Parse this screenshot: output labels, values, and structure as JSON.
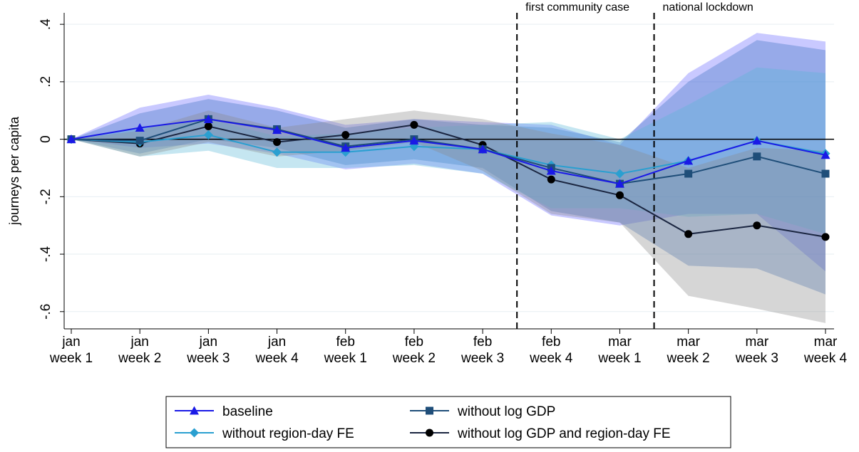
{
  "chart_data": {
    "type": "line",
    "ylabel": "journeys per capita",
    "categories": [
      [
        "jan",
        "week 1"
      ],
      [
        "jan",
        "week 2"
      ],
      [
        "jan",
        "week 3"
      ],
      [
        "jan",
        "week 4"
      ],
      [
        "feb",
        "week 1"
      ],
      [
        "feb",
        "week 2"
      ],
      [
        "feb",
        "week 3"
      ],
      [
        "feb",
        "week 4"
      ],
      [
        "mar",
        "week 1"
      ],
      [
        "mar",
        "week 2"
      ],
      [
        "mar",
        "week 3"
      ],
      [
        "mar",
        "week 4"
      ]
    ],
    "ylim": [
      -0.66,
      0.44
    ],
    "yticks": [
      {
        "value": 0.4,
        "label": ".4"
      },
      {
        "value": 0.2,
        "label": ".2"
      },
      0,
      {
        "value": -0.2,
        "label": "-.2"
      },
      {
        "value": -0.4,
        "label": "-.4"
      },
      {
        "value": -0.6,
        "label": "-.6"
      }
    ],
    "grid": true,
    "annotations": [
      {
        "text": "first community case",
        "x": 6.5
      },
      {
        "text": "national lockdown",
        "x": 8.5
      }
    ],
    "series": [
      {
        "name": "baseline",
        "color": "#1a1ae6",
        "band_color": "#6464ff",
        "marker": "triangle",
        "values": [
          0,
          0.04,
          0.07,
          0.032,
          -0.03,
          -0.005,
          -0.035,
          -0.11,
          -0.155,
          -0.075,
          -0.005,
          -0.055
        ],
        "upper": [
          0,
          0.11,
          0.155,
          0.11,
          0.05,
          0.07,
          0.06,
          0.05,
          -0.02,
          0.23,
          0.37,
          0.34
        ],
        "lower": [
          0,
          -0.03,
          -0.015,
          -0.05,
          -0.105,
          -0.085,
          -0.12,
          -0.265,
          -0.3,
          -0.26,
          -0.26,
          -0.46
        ]
      },
      {
        "name": "without log GDP",
        "color": "#1f4e79",
        "band_color": "#3a6fbf",
        "marker": "square",
        "values": [
          0,
          -0.005,
          0.07,
          0.035,
          -0.025,
          0,
          -0.035,
          -0.1,
          -0.155,
          -0.12,
          -0.06,
          -0.12
        ],
        "upper": [
          0,
          0.09,
          0.14,
          0.1,
          0.04,
          0.07,
          0.05,
          0.04,
          -0.01,
          0.2,
          0.345,
          0.31
        ],
        "lower": [
          0,
          -0.05,
          0,
          -0.03,
          -0.09,
          -0.07,
          -0.1,
          -0.25,
          -0.29,
          -0.44,
          -0.45,
          -0.54
        ]
      },
      {
        "name": "without region-day FE",
        "color": "#2a9fd0",
        "band_color": "#5ab8d8",
        "marker": "diamond",
        "values": [
          0,
          -0.01,
          0.015,
          -0.045,
          -0.045,
          -0.025,
          -0.035,
          -0.09,
          -0.12,
          -0.075,
          -0.005,
          -0.05
        ],
        "upper": [
          0,
          0.04,
          0.07,
          0.01,
          0.02,
          0.04,
          0.05,
          0.06,
          0,
          0.12,
          0.25,
          0.23
        ],
        "lower": [
          0,
          -0.06,
          -0.04,
          -0.1,
          -0.1,
          -0.09,
          -0.12,
          -0.24,
          -0.24,
          -0.27,
          -0.26,
          -0.33
        ]
      },
      {
        "name": "without log GDP and region-day FE",
        "color": "#1a2540",
        "band_color": "#8a8a8a",
        "marker": "circle",
        "values": [
          0,
          -0.015,
          0.045,
          -0.01,
          0.015,
          0.05,
          -0.02,
          -0.14,
          -0.195,
          -0.33,
          -0.3,
          -0.34
        ],
        "upper": [
          0,
          0.03,
          0.1,
          0.04,
          0.07,
          0.1,
          0.07,
          0.02,
          -0.02,
          -0.1,
          -0.03,
          -0.04
        ],
        "lower": [
          0,
          -0.06,
          -0.01,
          -0.06,
          -0.04,
          -0.01,
          -0.11,
          -0.26,
          -0.29,
          -0.545,
          -0.59,
          -0.64
        ]
      }
    ]
  }
}
